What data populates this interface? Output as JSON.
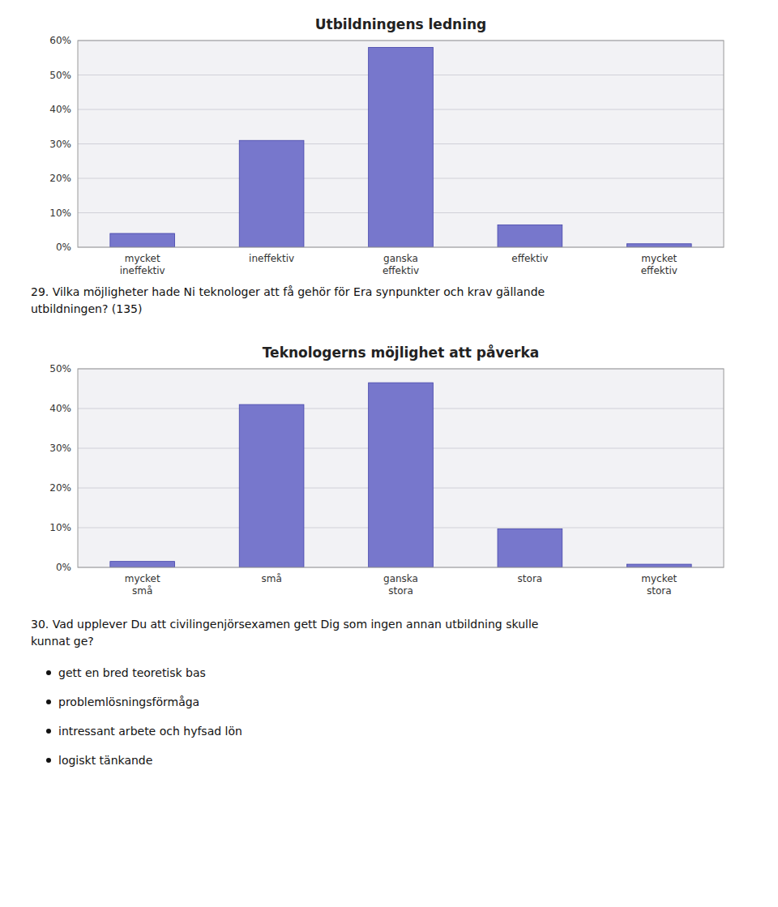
{
  "chart_data": [
    {
      "type": "bar",
      "title": "Utbildningens ledning",
      "categories": [
        "mycket\nineffektiv",
        "ineffektiv",
        "ganska\neffektiv",
        "effektiv",
        "mycket\neffektiv"
      ],
      "values": [
        0.04,
        0.31,
        0.58,
        0.065,
        0.01
      ],
      "color": "#7777cc",
      "ylim": [
        0,
        0.6
      ],
      "yticks": [
        {
          "value": 0.0,
          "label": "0%"
        },
        {
          "value": 0.1,
          "label": "10%"
        },
        {
          "value": 0.2,
          "label": "20%"
        },
        {
          "value": 0.3,
          "label": "30%"
        },
        {
          "value": 0.4,
          "label": "40%"
        },
        {
          "value": 0.5,
          "label": "50%"
        },
        {
          "value": 0.6,
          "label": "60%"
        }
      ],
      "grid": true
    },
    {
      "type": "bar",
      "title": "Teknologerns möjlighet att påverka",
      "categories": [
        "mycket\nsmå",
        "små",
        "ganska\nstora",
        "stora",
        "mycket\nstora"
      ],
      "values": [
        0.015,
        0.41,
        0.465,
        0.097,
        0.008
      ],
      "color": "#7777cc",
      "ylim": [
        0,
        0.5
      ],
      "yticks": [
        {
          "value": 0.0,
          "label": "0%"
        },
        {
          "value": 0.1,
          "label": "10%"
        },
        {
          "value": 0.2,
          "label": "20%"
        },
        {
          "value": 0.3,
          "label": "30%"
        },
        {
          "value": 0.4,
          "label": "40%"
        },
        {
          "value": 0.5,
          "label": "50%"
        }
      ],
      "grid": true
    }
  ],
  "texts": {
    "question_29": [
      "29. Vilka möjligheter hade Ni teknologer att få gehör för Era synpunkter och krav gällande",
      "utbildningen? (135)"
    ],
    "question_30": [
      "30. Vad upplever Du att civilingenjörsexamen gett Dig som ingen annan utbildning skulle",
      "kunnat ge?"
    ],
    "bullets": [
      "gett en bred teoretisk bas",
      "problemlösningsförmåga",
      "intressant arbete och hyfsad lön",
      "logiskt tänkande"
    ]
  }
}
